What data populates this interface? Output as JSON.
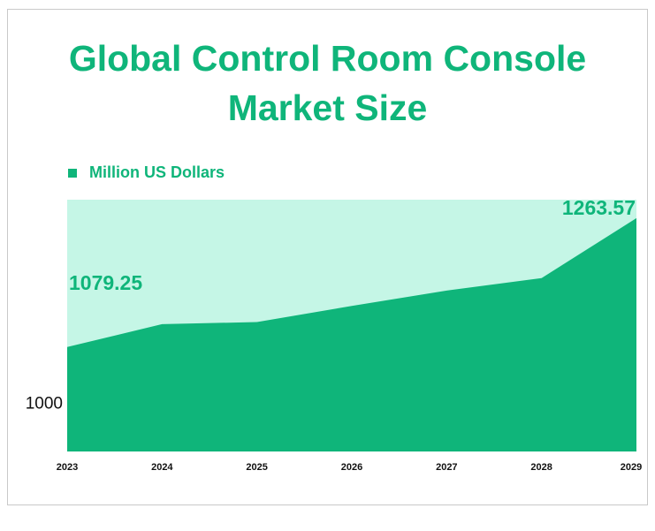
{
  "chart_data": {
    "type": "area",
    "title_lines": [
      "Global Control Room Console",
      "Market Size"
    ],
    "series": [
      {
        "name": "Million US Dollars",
        "values": [
          1079.25,
          1112,
          1115,
          1138,
          1160,
          1178,
          1263.57
        ]
      }
    ],
    "categories": [
      "2023",
      "2024",
      "2025",
      "2026",
      "2027",
      "2028",
      "2029"
    ],
    "y_ticks": [
      "1000"
    ],
    "ylim": [
      930,
      1290
    ],
    "data_labels": [
      {
        "index": 0,
        "text": "1079.25"
      },
      {
        "index": 6,
        "text": "1263.57"
      }
    ],
    "colors": {
      "fill": "#0fb57a",
      "plot_background": "#c5f6e6",
      "text": "#0fb57a"
    },
    "legend_position": "top-left",
    "grid": false
  }
}
